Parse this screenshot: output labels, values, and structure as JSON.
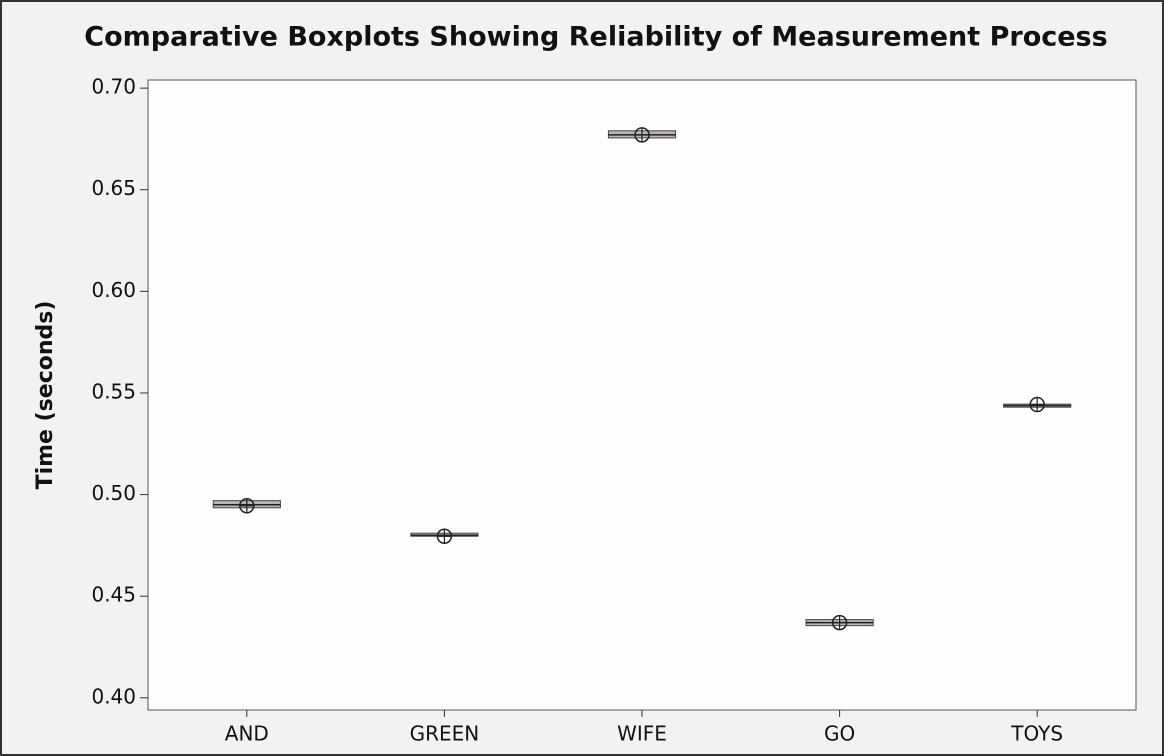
{
  "chart_data": {
    "type": "boxplot",
    "title": "Comparative Boxplots Showing Reliability of Measurement Process",
    "y_label": "Time (seconds)",
    "categories": [
      "AND",
      "GREEN",
      "WIFE",
      "GO",
      "TOYS"
    ],
    "color": "#bdb5bd",
    "boxes": [
      {
        "min": 0.4925,
        "q1": 0.4935,
        "median": 0.495,
        "q3": 0.497,
        "max": 0.4975,
        "mean": 0.4945
      },
      {
        "min": 0.4785,
        "q1": 0.4795,
        "median": 0.48,
        "q3": 0.481,
        "max": 0.4815,
        "mean": 0.4795
      },
      {
        "min": 0.675,
        "q1": 0.6755,
        "median": 0.677,
        "q3": 0.679,
        "max": 0.6795,
        "mean": 0.677
      },
      {
        "min": 0.435,
        "q1": 0.4355,
        "median": 0.437,
        "q3": 0.4385,
        "max": 0.439,
        "mean": 0.437
      },
      {
        "min": 0.5425,
        "q1": 0.543,
        "median": 0.5438,
        "q3": 0.5445,
        "max": 0.545,
        "mean": 0.5443
      }
    ],
    "ylim": [
      0.394,
      0.704
    ],
    "yticks": [
      {
        "value": 0.4,
        "label": "0.40"
      },
      {
        "value": 0.45,
        "label": "0.45"
      },
      {
        "value": 0.5,
        "label": "0.50"
      },
      {
        "value": 0.55,
        "label": "0.55"
      },
      {
        "value": 0.6,
        "label": "0.60"
      },
      {
        "value": 0.65,
        "label": "0.65"
      },
      {
        "value": 0.7,
        "label": "0.70"
      }
    ]
  }
}
